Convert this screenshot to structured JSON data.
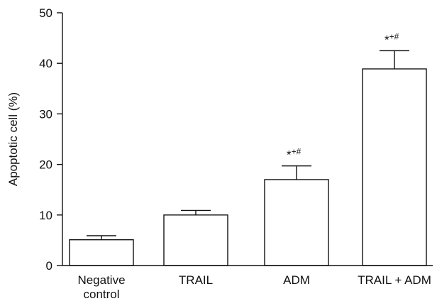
{
  "chart_data": {
    "type": "bar",
    "categories": [
      [
        "Negative",
        "control"
      ],
      [
        "TRAIL"
      ],
      [
        "ADM"
      ],
      [
        "TRAIL + ADM"
      ]
    ],
    "values": [
      5.1,
      10.0,
      17.0,
      38.9
    ],
    "errors": [
      0.8,
      0.9,
      2.7,
      3.6
    ],
    "significance": [
      "",
      "",
      "*+#",
      "*+#"
    ],
    "ylabel": "Apoptotic cell (%)",
    "xlabel": "",
    "ylim": [
      0,
      50
    ],
    "yticks": [
      0,
      10,
      20,
      30,
      40,
      50
    ],
    "grid": false,
    "bar_color": "#ffffff",
    "edge_color": "#111111"
  }
}
